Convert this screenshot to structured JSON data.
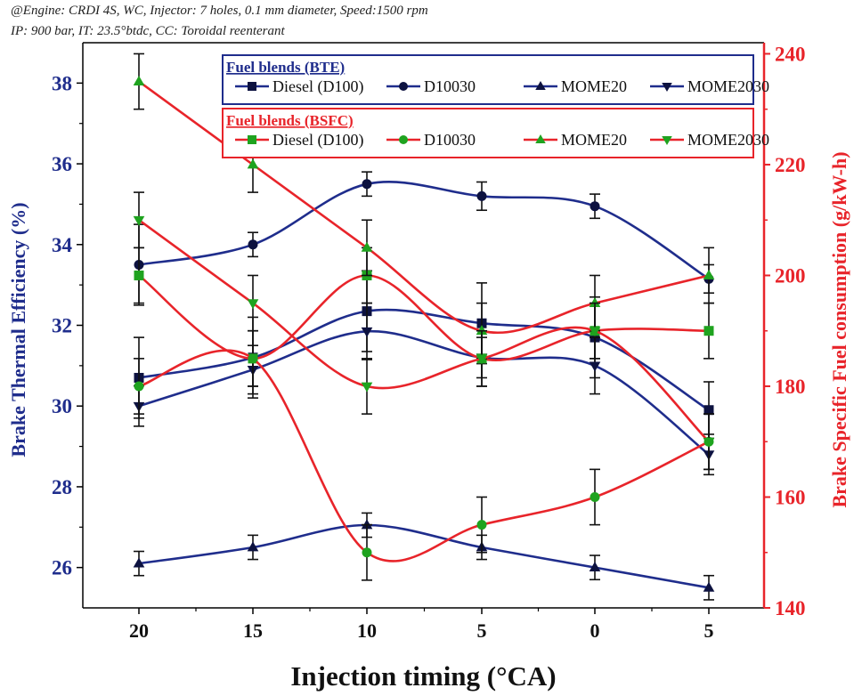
{
  "notes": [
    "@Engine: CRDI 4S, WC, Injector: 7 holes,  0.1 mm diameter, Speed:1500 rpm",
    "IP: 900 bar, IT: 23.5°btdc, CC: Toroidal reenterant"
  ],
  "chart_data": {
    "type": "line",
    "xlabel": "Injection timing (°CA)",
    "x_tick_labels": [
      "20",
      "15",
      "10",
      "5",
      "0",
      "5"
    ],
    "left_axis": {
      "label": "Brake Thermal Efficiency (%)",
      "ylim": [
        25,
        39
      ],
      "ticks": [
        26,
        28,
        30,
        32,
        34,
        36,
        38
      ],
      "color": "#1f2d8c"
    },
    "right_axis": {
      "label": "Brake Specific Fuel consumption (g/kW-h)",
      "ylim": [
        140,
        242
      ],
      "ticks": [
        140,
        160,
        180,
        200,
        220,
        240
      ],
      "color": "#e8242a"
    },
    "legend_groups": [
      {
        "title": "Fuel blends (BTE)",
        "box_color": "#1f2d8c",
        "line_color": "#1f2d8c",
        "marker_color": "#0d1240",
        "axis": "left"
      },
      {
        "title": "Fuel blends (BSFC)",
        "box_color": "#e8242a",
        "line_color": "#e8242a",
        "marker_color": "#1fa31f",
        "axis": "right"
      }
    ],
    "series": [
      {
        "group": 0,
        "name": "Diesel (D100)",
        "marker": "square",
        "values": [
          30.7,
          31.2,
          32.35,
          32.05,
          31.7,
          29.9
        ],
        "errors": [
          1.0,
          1.0,
          1.0,
          1.0,
          1.0,
          0.7
        ]
      },
      {
        "group": 0,
        "name": "D10030",
        "marker": "circle",
        "values": [
          33.5,
          34.0,
          35.5,
          35.2,
          34.95,
          33.15
        ],
        "errors": [
          1.0,
          0.3,
          0.3,
          0.35,
          0.3,
          0.35
        ]
      },
      {
        "group": 0,
        "name": "MOME20",
        "marker": "triangle-up",
        "values": [
          26.1,
          26.5,
          27.05,
          26.5,
          26.0,
          25.5
        ],
        "errors": [
          0.3,
          0.3,
          0.3,
          0.3,
          0.3,
          0.3
        ]
      },
      {
        "group": 0,
        "name": "MOME2030",
        "marker": "triangle-down",
        "values": [
          30.0,
          30.9,
          31.85,
          31.2,
          31.0,
          28.8
        ],
        "errors": [
          0.5,
          0.6,
          0.7,
          0.5,
          0.7,
          0.5
        ]
      },
      {
        "group": 1,
        "name": "Diesel (D100)",
        "marker": "square",
        "values": [
          200,
          185,
          200,
          185,
          190,
          190
        ],
        "errors": [
          5,
          5,
          5,
          5,
          5,
          5
        ]
      },
      {
        "group": 1,
        "name": "D10030",
        "marker": "circle",
        "values": [
          180,
          185,
          150,
          155,
          160,
          170
        ],
        "errors": [
          5,
          5,
          5,
          5,
          5,
          5
        ]
      },
      {
        "group": 1,
        "name": "MOME20",
        "marker": "triangle-up",
        "values": [
          235,
          220,
          205,
          190,
          195,
          200
        ],
        "errors": [
          5,
          5,
          5,
          5,
          5,
          5
        ]
      },
      {
        "group": 1,
        "name": "MOME2030",
        "marker": "triangle-down",
        "values": [
          210,
          195,
          180,
          185,
          190,
          170
        ],
        "errors": [
          5,
          5,
          5,
          5,
          5,
          5
        ]
      }
    ]
  }
}
